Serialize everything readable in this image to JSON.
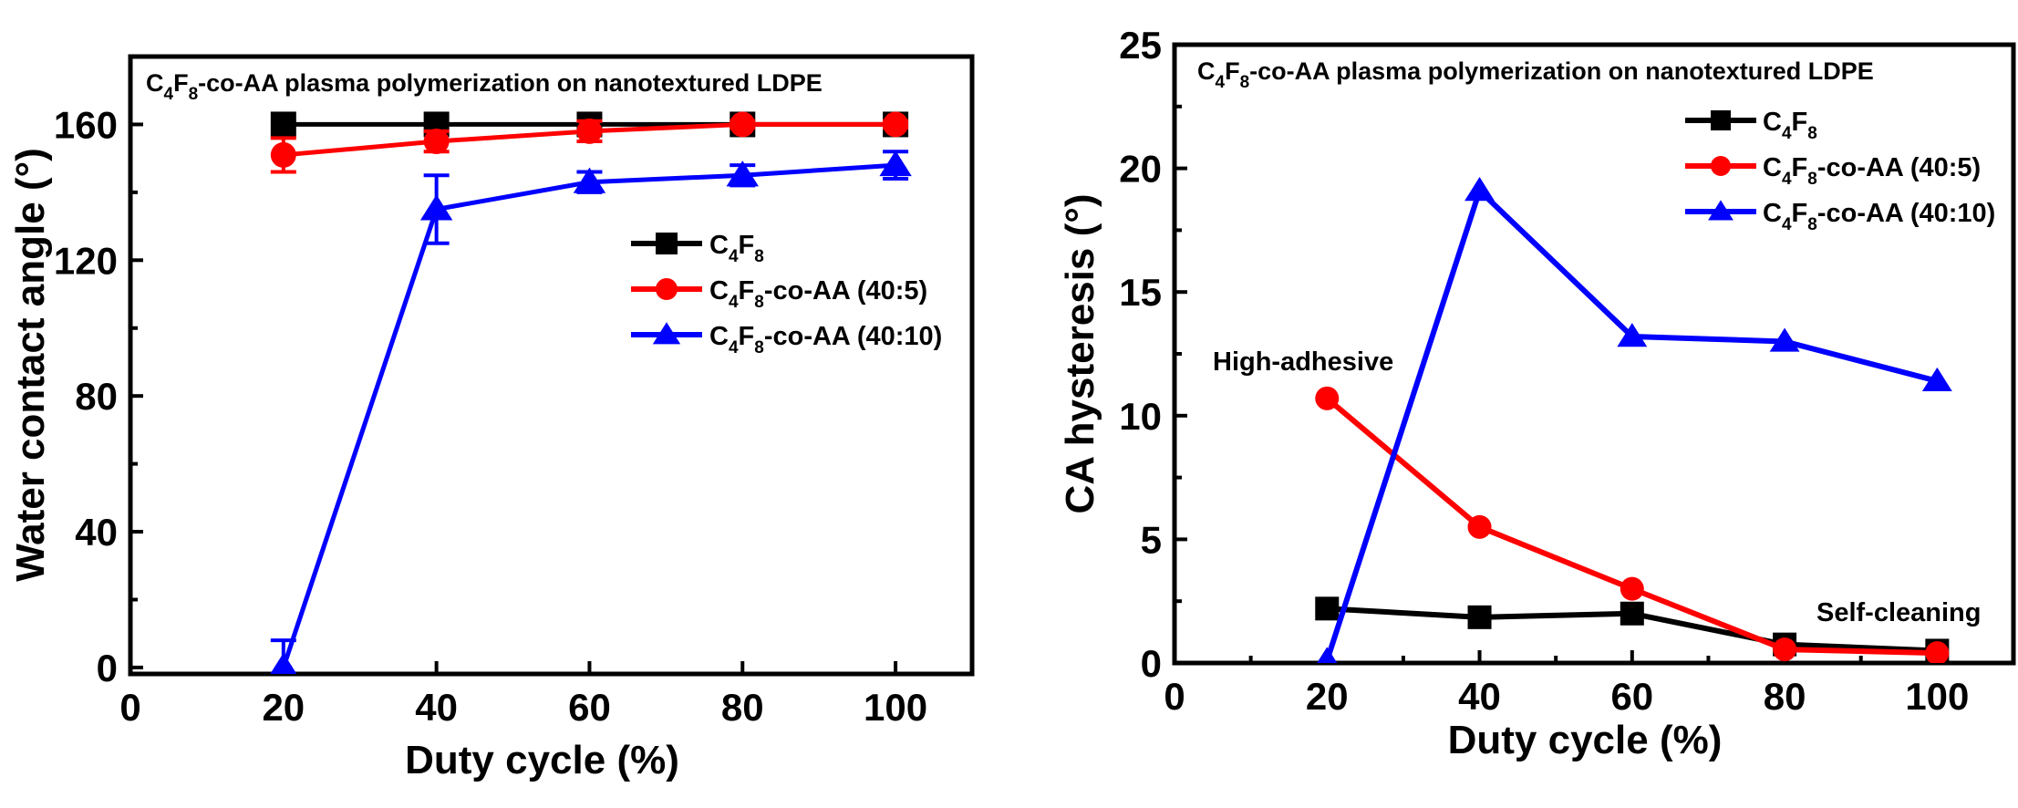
{
  "colors": {
    "C4F8": "#000000",
    "C4F8-co-AA (40:5)": "#ff0000",
    "C4F8-co-AA (40:10)": "#0000ff",
    "axis": "#000000",
    "background": "#ffffff"
  },
  "chart_data": [
    {
      "type": "line",
      "title": "C4F8-co-AA plasma polymerization on nanotextured LDPE",
      "xlabel": "Duty cycle (%)",
      "ylabel": "Water contact angle (°)",
      "xlim": [
        0,
        110
      ],
      "ylim": [
        -1.9,
        180
      ],
      "xticks": [
        0,
        20,
        40,
        60,
        80,
        100
      ],
      "xtick_labels": [
        "0",
        "20",
        "40",
        "60",
        "80",
        "100"
      ],
      "yticks": [
        0,
        40,
        80,
        120,
        160
      ],
      "ytick_labels": [
        "0",
        "40",
        "80",
        "120",
        "160"
      ],
      "yminor_ticks": [
        20,
        60,
        100,
        140
      ],
      "grid": false,
      "legend_position": "center-right",
      "x": [
        20,
        40,
        60,
        80,
        100
      ],
      "series": [
        {
          "name": "C4F8",
          "marker": "square",
          "values": [
            160,
            160,
            160,
            160,
            160
          ],
          "errors": [
            0,
            0,
            0,
            0,
            0
          ]
        },
        {
          "name": "C4F8-co-AA (40:5)",
          "marker": "circle",
          "values": [
            151,
            155,
            158,
            160,
            160
          ],
          "errors": [
            5,
            3,
            3,
            1,
            1
          ]
        },
        {
          "name": "C4F8-co-AA (40:10)",
          "marker": "triangle",
          "values": [
            0,
            135,
            143,
            145,
            148
          ],
          "errors": [
            8,
            10,
            3,
            3,
            4
          ]
        }
      ]
    },
    {
      "type": "line",
      "title": "C4F8-co-AA plasma polymerization on nanotextured LDPE",
      "xlabel": "Duty cycle (%)",
      "ylabel": "CA hysteresis (°)",
      "xlim": [
        0,
        110
      ],
      "ylim": [
        0,
        25
      ],
      "xticks": [
        0,
        20,
        40,
        60,
        80,
        100
      ],
      "xtick_labels": [
        "0",
        "20",
        "40",
        "60",
        "80",
        "100"
      ],
      "xminor_ticks": [
        10,
        30,
        50,
        70,
        90
      ],
      "yticks": [
        0,
        5,
        10,
        15,
        20,
        25
      ],
      "ytick_labels": [
        "0",
        "5",
        "10",
        "15",
        "20",
        "25"
      ],
      "yminor_ticks": [
        2.5,
        7.5,
        12.5,
        17.5,
        22.5
      ],
      "grid": false,
      "legend_position": "top-right",
      "annotations": [
        "High-adhesive",
        "Self-cleaning"
      ],
      "x": [
        20,
        40,
        60,
        80,
        100
      ],
      "series": [
        {
          "name": "C4F8",
          "marker": "square",
          "values": [
            2.2,
            1.85,
            2.0,
            0.75,
            0.5
          ]
        },
        {
          "name": "C4F8-co-AA (40:5)",
          "marker": "circle",
          "values": [
            10.7,
            5.5,
            3.0,
            0.55,
            0.4
          ]
        },
        {
          "name": "C4F8-co-AA (40:10)",
          "marker": "triangle",
          "values": [
            0.1,
            19.1,
            13.2,
            13.0,
            11.4
          ]
        }
      ]
    }
  ]
}
